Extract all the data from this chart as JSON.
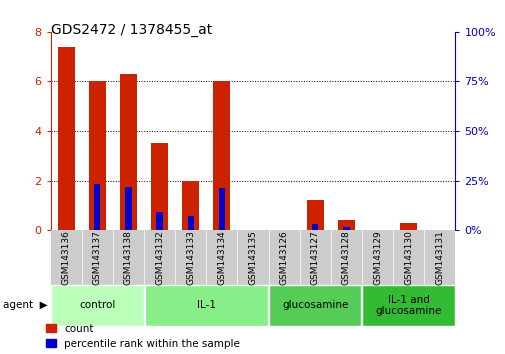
{
  "title": "GDS2472 / 1378455_at",
  "samples": [
    "GSM143136",
    "GSM143137",
    "GSM143138",
    "GSM143132",
    "GSM143133",
    "GSM143134",
    "GSM143135",
    "GSM143126",
    "GSM143127",
    "GSM143128",
    "GSM143129",
    "GSM143130",
    "GSM143131"
  ],
  "count_values": [
    7.4,
    6.0,
    6.3,
    3.5,
    2.0,
    6.0,
    0.0,
    0.0,
    1.2,
    0.4,
    0.0,
    0.3,
    0.0
  ],
  "percentile_values": [
    0.0,
    1.85,
    1.75,
    0.75,
    0.55,
    1.7,
    0.0,
    0.0,
    0.25,
    0.12,
    0.0,
    0.0,
    0.0
  ],
  "groups": [
    {
      "label": "control",
      "indices": [
        0,
        1,
        2
      ],
      "color": "#bbffbb"
    },
    {
      "label": "IL-1",
      "indices": [
        3,
        4,
        5,
        6
      ],
      "color": "#88ee88"
    },
    {
      "label": "glucosamine",
      "indices": [
        7,
        8,
        9
      ],
      "color": "#55cc55"
    },
    {
      "label": "IL-1 and\nglucosamine",
      "indices": [
        10,
        11,
        12
      ],
      "color": "#33bb33"
    }
  ],
  "agent_label": "agent",
  "ylim_left": [
    0,
    8
  ],
  "ylim_right": [
    0,
    100
  ],
  "yticks_left": [
    0,
    2,
    4,
    6,
    8
  ],
  "yticks_right": [
    0,
    25,
    50,
    75,
    100
  ],
  "bar_color_red": "#cc2200",
  "bar_color_blue": "#0000cc",
  "bar_width": 0.55,
  "blue_bar_width": 0.2,
  "legend_count": "count",
  "legend_percentile": "percentile rank within the sample",
  "background_color": "#ffffff",
  "tick_label_color_left": "#cc2200",
  "tick_label_color_right": "#0000cc",
  "sample_box_color": "#cccccc"
}
